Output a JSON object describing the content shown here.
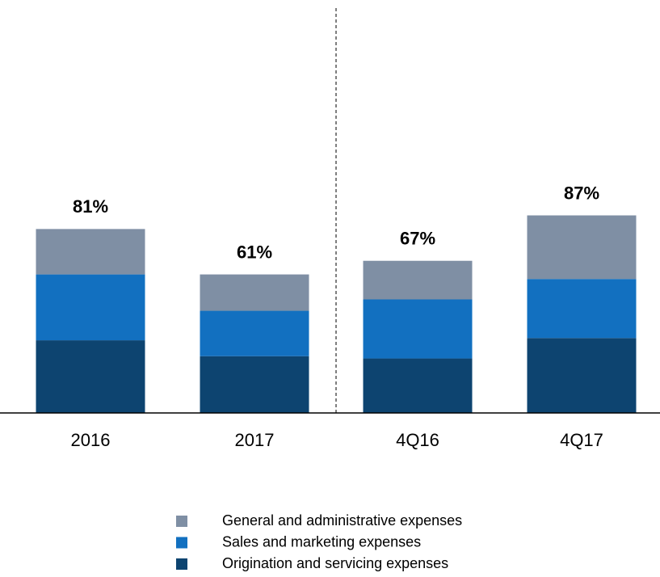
{
  "chart_data": {
    "type": "stacked_bar",
    "categories": [
      "2016",
      "2017",
      "4Q16",
      "4Q17"
    ],
    "series": [
      {
        "name": "Origination and servicing expenses",
        "color": "#0d4470",
        "values": [
          32,
          25,
          24,
          33
        ]
      },
      {
        "name": "Sales and marketing expenses",
        "color": "#1270c0",
        "values": [
          29,
          20,
          26,
          26
        ]
      },
      {
        "name": "General and administrative expenses",
        "color": "#7f8fa4",
        "values": [
          20,
          16,
          17,
          28
        ]
      }
    ],
    "totals": [
      81,
      61,
      67,
      87
    ],
    "total_labels": [
      "81%",
      "61%",
      "67%",
      "87%"
    ],
    "legend": "bottom"
  }
}
